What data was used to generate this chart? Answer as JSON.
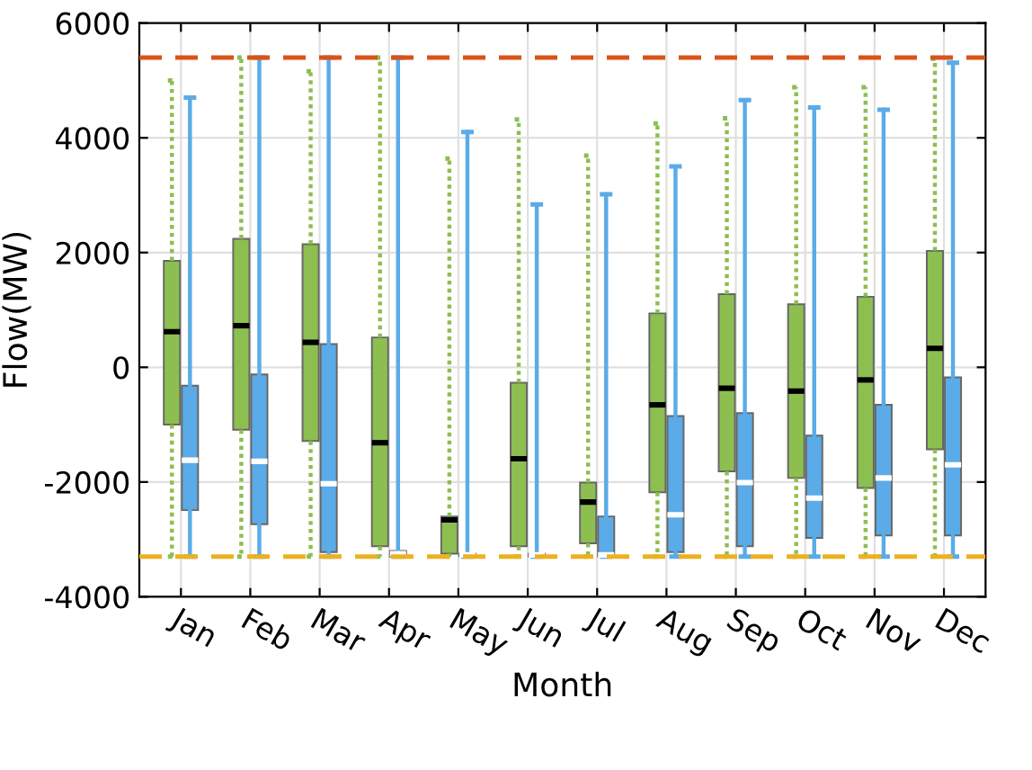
{
  "chart_data": {
    "type": "box",
    "xlabel": "Month",
    "ylabel": "Flow(MW)",
    "categories": [
      "Jan",
      "Feb",
      "Mar",
      "Apr",
      "May",
      "Jun",
      "Jul",
      "Aug",
      "Sep",
      "Oct",
      "Nov",
      "Dec"
    ],
    "ylim": [
      -4000,
      6000
    ],
    "yticks": [
      -4000,
      -2000,
      0,
      2000,
      4000,
      6000
    ],
    "grid": true,
    "ref_lines": [
      {
        "axis": "y",
        "value": 5400,
        "color": "#d95319",
        "line_style": "dashed"
      },
      {
        "axis": "y",
        "value": -3300,
        "color": "#edb120",
        "line_style": "dashed"
      }
    ],
    "series": [
      {
        "color": "#8cbf50",
        "line_style": "dotted",
        "boxes": [
          {
            "low": -3300,
            "q1": -1000,
            "median": 620,
            "q3": 1855,
            "high": 5000
          },
          {
            "low": -3300,
            "q1": -1090,
            "median": 725,
            "q3": 2240,
            "high": 5400
          },
          {
            "low": -3300,
            "q1": -1285,
            "median": 435,
            "q3": 2145,
            "high": 5160
          },
          {
            "low": -3300,
            "q1": -3120,
            "median": -1315,
            "q3": 520,
            "high": 5400
          },
          {
            "low": -3300,
            "q1": -3250,
            "median": -2660,
            "q3": -2600,
            "high": 3640
          },
          {
            "low": -3300,
            "q1": -3120,
            "median": -1595,
            "q3": -270,
            "high": 4320
          },
          {
            "low": -3300,
            "q1": -3070,
            "median": -2350,
            "q3": -2010,
            "high": 3690
          },
          {
            "low": -3300,
            "q1": -2180,
            "median": -655,
            "q3": 940,
            "high": 4250
          },
          {
            "low": -3300,
            "q1": -1815,
            "median": -365,
            "q3": 1275,
            "high": 4340
          },
          {
            "low": -3300,
            "q1": -1930,
            "median": -415,
            "q3": 1100,
            "high": 4880
          },
          {
            "low": -3300,
            "q1": -2105,
            "median": -220,
            "q3": 1230,
            "high": 4880
          },
          {
            "low": -3300,
            "q1": -1430,
            "median": 330,
            "q3": 2030,
            "high": 5380
          }
        ]
      },
      {
        "color": "#5aabe8",
        "line_style": "solid",
        "boxes": [
          {
            "low": -3300,
            "q1": -2490,
            "median": -1620,
            "q3": -320,
            "high": 4700
          },
          {
            "low": -3300,
            "q1": -2735,
            "median": -1640,
            "q3": -125,
            "high": 5400
          },
          {
            "low": -3300,
            "q1": -3220,
            "median": -2030,
            "q3": 405,
            "high": 5400
          },
          {
            "low": -3300,
            "q1": -3300,
            "median": -3250,
            "q3": -3200,
            "high": 5400
          },
          {
            "low": -3300,
            "q1": -3300,
            "median": -3270,
            "q3": -3250,
            "high": 4100
          },
          {
            "low": -3300,
            "q1": -3300,
            "median": -3270,
            "q3": -3250,
            "high": 2840
          },
          {
            "low": -3300,
            "q1": -3300,
            "median": -3270,
            "q3": -2600,
            "high": 3015
          },
          {
            "low": -3300,
            "q1": -3220,
            "median": -2570,
            "q3": -850,
            "high": 3500
          },
          {
            "low": -3300,
            "q1": -3120,
            "median": -2010,
            "q3": -800,
            "high": 4660
          },
          {
            "low": -3300,
            "q1": -2975,
            "median": -2280,
            "q3": -1190,
            "high": 4530
          },
          {
            "low": -3300,
            "q1": -2930,
            "median": -1930,
            "q3": -655,
            "high": 4490
          },
          {
            "low": -3300,
            "q1": -2930,
            "median": -1700,
            "q3": -175,
            "high": 5310
          }
        ]
      }
    ]
  }
}
